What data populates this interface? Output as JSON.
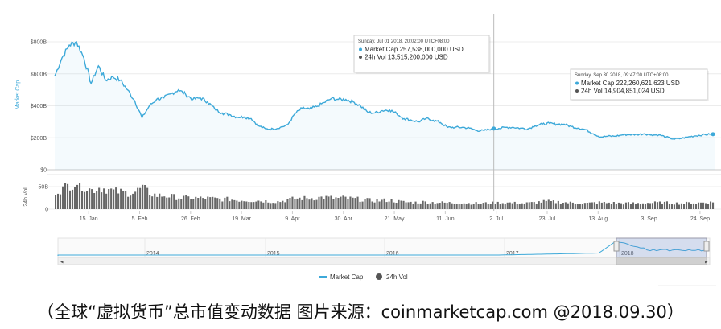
{
  "chart_data": {
    "type": "area",
    "y_axis_label": "Market Cap",
    "y_ticks": [
      "$800B",
      "$600B",
      "$400B",
      "$200B",
      "$0"
    ],
    "vol_axis_label": "24h Vol",
    "vol_ticks": [
      "50B",
      "0"
    ],
    "x_ticks": [
      "15. Jan",
      "5. Feb",
      "26. Feb",
      "19. Mar",
      "9. Apr",
      "30. Apr",
      "21. May",
      "11. Jun",
      "2. Jul",
      "23. Jul",
      "13. Aug",
      "3. Sep",
      "24. Sep"
    ],
    "navigator_years": [
      "2014",
      "2015",
      "2016",
      "2017",
      "2018"
    ],
    "series": [
      {
        "name": "Market Cap",
        "color": "#3da9d9",
        "x": [
          "2018-01-01",
          "2018-01-04",
          "2018-01-07",
          "2018-01-10",
          "2018-01-13",
          "2018-01-16",
          "2018-01-19",
          "2018-01-22",
          "2018-01-25",
          "2018-01-28",
          "2018-01-31",
          "2018-02-03",
          "2018-02-06",
          "2018-02-09",
          "2018-02-12",
          "2018-02-15",
          "2018-02-18",
          "2018-02-21",
          "2018-02-24",
          "2018-02-27",
          "2018-03-02",
          "2018-03-05",
          "2018-03-08",
          "2018-03-11",
          "2018-03-14",
          "2018-03-17",
          "2018-03-20",
          "2018-03-23",
          "2018-03-26",
          "2018-03-29",
          "2018-04-01",
          "2018-04-04",
          "2018-04-07",
          "2018-04-10",
          "2018-04-13",
          "2018-04-16",
          "2018-04-19",
          "2018-04-22",
          "2018-04-25",
          "2018-04-28",
          "2018-05-01",
          "2018-05-04",
          "2018-05-07",
          "2018-05-10",
          "2018-05-13",
          "2018-05-16",
          "2018-05-19",
          "2018-05-22",
          "2018-05-25",
          "2018-05-28",
          "2018-05-31",
          "2018-06-03",
          "2018-06-06",
          "2018-06-09",
          "2018-06-12",
          "2018-06-15",
          "2018-06-18",
          "2018-06-21",
          "2018-06-24",
          "2018-06-27",
          "2018-06-30",
          "2018-07-03",
          "2018-07-06",
          "2018-07-09",
          "2018-07-12",
          "2018-07-15",
          "2018-07-18",
          "2018-07-21",
          "2018-07-24",
          "2018-07-27",
          "2018-07-30",
          "2018-08-02",
          "2018-08-05",
          "2018-08-08",
          "2018-08-11",
          "2018-08-14",
          "2018-08-17",
          "2018-08-20",
          "2018-08-23",
          "2018-08-26",
          "2018-08-29",
          "2018-09-01",
          "2018-09-04",
          "2018-09-07",
          "2018-09-10",
          "2018-09-13",
          "2018-09-16",
          "2018-09-19",
          "2018-09-22",
          "2018-09-25",
          "2018-09-28",
          "2018-09-30"
        ],
        "values": [
          585,
          700,
          780,
          800,
          700,
          540,
          650,
          560,
          580,
          560,
          500,
          430,
          325,
          400,
          440,
          450,
          475,
          500,
          470,
          440,
          450,
          425,
          380,
          355,
          345,
          330,
          330,
          320,
          275,
          255,
          255,
          265,
          280,
          350,
          385,
          380,
          395,
          420,
          445,
          440,
          440,
          425,
          400,
          360,
          355,
          370,
          375,
          350,
          320,
          310,
          300,
          320,
          310,
          295,
          265,
          265,
          265,
          260,
          245,
          245,
          255,
          258,
          265,
          265,
          260,
          255,
          275,
          285,
          290,
          285,
          285,
          270,
          260,
          250,
          225,
          205,
          210,
          210,
          218,
          220,
          220,
          225,
          218,
          218,
          205,
          192,
          195,
          205,
          212,
          218,
          222,
          222
        ]
      }
    ],
    "volume_values_B": [
      40,
      45,
      55,
      60,
      50,
      42,
      48,
      45,
      40,
      38,
      36,
      38,
      48,
      36,
      30,
      30,
      28,
      26,
      25,
      25,
      24,
      24,
      23,
      22,
      22,
      20,
      20,
      19,
      19,
      18,
      17,
      17,
      20,
      23,
      24,
      24,
      25,
      26,
      25,
      24,
      25,
      23,
      22,
      20,
      19,
      19,
      20,
      18,
      16,
      15,
      15,
      16,
      15,
      15,
      14,
      14,
      14,
      13,
      13,
      13,
      13,
      14,
      14,
      14,
      13,
      13,
      14,
      16,
      17,
      16,
      16,
      14,
      14,
      13,
      13,
      15,
      14,
      14,
      13,
      13,
      13,
      13,
      14,
      14,
      14,
      14,
      13,
      13,
      14,
      14,
      15,
      15
    ],
    "crosshair_x": "2018-07-01",
    "tooltips": [
      {
        "title": "Sunday, Jul 01 2018, 20:02:00 UTC+08:00",
        "lines": [
          {
            "label": "Market Cap",
            "value": "257,538,000,000 USD",
            "color": "#3da9d9"
          },
          {
            "label": "24h Vol",
            "value": "13,515,200,000 USD",
            "color": "#555555"
          }
        ]
      },
      {
        "title": "Sunday, Sep 30 2018, 09:47:00 UTC+08:00",
        "lines": [
          {
            "label": "Market Cap",
            "value": "222,260,621,623 USD",
            "color": "#3da9d9"
          },
          {
            "label": "24h Vol",
            "value": "14,904,851,024 USD",
            "color": "#555555"
          }
        ]
      }
    ],
    "legend": [
      {
        "label": "Market Cap",
        "color": "#3da9d9"
      },
      {
        "label": "24h Vol",
        "color": "#555555"
      }
    ],
    "legend_placement": "bottom-center",
    "grid": true
  },
  "caption": "（全球“虚拟货币”总市值变动数据 图片来源：coinmarketcap.com @2018.09.30）"
}
